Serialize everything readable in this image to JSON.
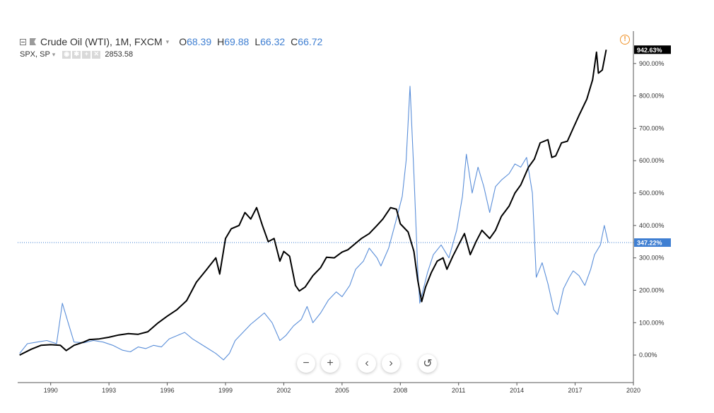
{
  "legend": {
    "main_symbol": "Crude Oil (WTI), 1M, FXCM",
    "caret": "▾",
    "o_label": "O",
    "o_value": "68.39",
    "h_label": "H",
    "h_value": "69.88",
    "l_label": "L",
    "l_value": "66.32",
    "c_label": "C",
    "c_value": "66.72",
    "compare_symbol": "SPX, SP",
    "compare_value": "2853.58"
  },
  "nav_buttons": {
    "zoom_out": "−",
    "zoom_in": "+",
    "scroll_left": "‹",
    "scroll_right": "›",
    "reset": "↺"
  },
  "warning_icon": "!",
  "chart_data": {
    "type": "line",
    "x_tick_labels": [
      "1990",
      "1993",
      "1996",
      "1999",
      "2002",
      "2005",
      "2008",
      "2011",
      "2014",
      "2017",
      "2020"
    ],
    "y_tick_labels": [
      "0.00%",
      "100.00%",
      "200.00%",
      "300.00%",
      "400.00%",
      "500.00%",
      "600.00%",
      "700.00%",
      "800.00%",
      "900.00%"
    ],
    "y_ticks": [
      0,
      100,
      200,
      300,
      400,
      500,
      600,
      700,
      800,
      900
    ],
    "xlim": [
      1988.3,
      2020.0
    ],
    "ylim": [
      -85,
      1000
    ],
    "grid": false,
    "reference_line": {
      "value": 347.22,
      "label": "347.22%",
      "color": "#3f7fd2"
    },
    "series": [
      {
        "name": "SPX, SP",
        "color": "#000000",
        "last_label": "942.63%",
        "points": [
          [
            1988.4,
            0
          ],
          [
            1989.0,
            18
          ],
          [
            1989.5,
            30
          ],
          [
            1990.0,
            32
          ],
          [
            1990.5,
            30
          ],
          [
            1990.8,
            14
          ],
          [
            1991.2,
            30
          ],
          [
            1991.7,
            40
          ],
          [
            1992.0,
            48
          ],
          [
            1992.5,
            50
          ],
          [
            1993.0,
            55
          ],
          [
            1993.5,
            62
          ],
          [
            1994.0,
            66
          ],
          [
            1994.5,
            64
          ],
          [
            1995.0,
            72
          ],
          [
            1995.5,
            98
          ],
          [
            1996.0,
            120
          ],
          [
            1996.5,
            140
          ],
          [
            1997.0,
            168
          ],
          [
            1997.5,
            225
          ],
          [
            1998.0,
            262
          ],
          [
            1998.5,
            300
          ],
          [
            1998.7,
            250
          ],
          [
            1999.0,
            360
          ],
          [
            1999.3,
            390
          ],
          [
            1999.7,
            400
          ],
          [
            2000.0,
            440
          ],
          [
            2000.3,
            420
          ],
          [
            2000.6,
            455
          ],
          [
            2000.9,
            400
          ],
          [
            2001.2,
            350
          ],
          [
            2001.5,
            360
          ],
          [
            2001.8,
            290
          ],
          [
            2002.0,
            320
          ],
          [
            2002.3,
            305
          ],
          [
            2002.6,
            215
          ],
          [
            2002.8,
            198
          ],
          [
            2003.1,
            210
          ],
          [
            2003.5,
            245
          ],
          [
            2003.9,
            270
          ],
          [
            2004.2,
            302
          ],
          [
            2004.6,
            300
          ],
          [
            2005.0,
            318
          ],
          [
            2005.3,
            325
          ],
          [
            2005.7,
            345
          ],
          [
            2006.0,
            360
          ],
          [
            2006.4,
            375
          ],
          [
            2006.8,
            400
          ],
          [
            2007.1,
            420
          ],
          [
            2007.5,
            455
          ],
          [
            2007.8,
            450
          ],
          [
            2008.0,
            405
          ],
          [
            2008.4,
            380
          ],
          [
            2008.7,
            320
          ],
          [
            2008.9,
            230
          ],
          [
            2009.1,
            165
          ],
          [
            2009.3,
            210
          ],
          [
            2009.6,
            255
          ],
          [
            2009.9,
            290
          ],
          [
            2010.2,
            300
          ],
          [
            2010.4,
            265
          ],
          [
            2010.7,
            305
          ],
          [
            2011.0,
            340
          ],
          [
            2011.3,
            375
          ],
          [
            2011.6,
            310
          ],
          [
            2011.9,
            350
          ],
          [
            2012.2,
            385
          ],
          [
            2012.6,
            360
          ],
          [
            2012.9,
            385
          ],
          [
            2013.2,
            428
          ],
          [
            2013.6,
            460
          ],
          [
            2013.9,
            500
          ],
          [
            2014.2,
            525
          ],
          [
            2014.6,
            580
          ],
          [
            2014.9,
            605
          ],
          [
            2015.2,
            655
          ],
          [
            2015.6,
            665
          ],
          [
            2015.8,
            610
          ],
          [
            2016.0,
            615
          ],
          [
            2016.3,
            655
          ],
          [
            2016.6,
            660
          ],
          [
            2016.9,
            700
          ],
          [
            2017.2,
            740
          ],
          [
            2017.6,
            790
          ],
          [
            2017.9,
            850
          ],
          [
            2018.1,
            935
          ],
          [
            2018.2,
            870
          ],
          [
            2018.4,
            880
          ],
          [
            2018.6,
            942.63
          ]
        ]
      },
      {
        "name": "Crude Oil (WTI), 1M, FXCM",
        "color": "#5b8fd9",
        "last_label": "347.22%",
        "points": [
          [
            1988.4,
            5
          ],
          [
            1988.8,
            35
          ],
          [
            1989.3,
            40
          ],
          [
            1989.8,
            45
          ],
          [
            1990.3,
            35
          ],
          [
            1990.6,
            160
          ],
          [
            1990.9,
            100
          ],
          [
            1991.2,
            40
          ],
          [
            1991.7,
            38
          ],
          [
            1992.2,
            45
          ],
          [
            1992.7,
            40
          ],
          [
            1993.2,
            30
          ],
          [
            1993.7,
            15
          ],
          [
            1994.1,
            10
          ],
          [
            1994.5,
            25
          ],
          [
            1994.9,
            20
          ],
          [
            1995.3,
            30
          ],
          [
            1995.7,
            25
          ],
          [
            1996.1,
            50
          ],
          [
            1996.5,
            60
          ],
          [
            1996.9,
            70
          ],
          [
            1997.3,
            50
          ],
          [
            1997.7,
            35
          ],
          [
            1998.1,
            20
          ],
          [
            1998.5,
            5
          ],
          [
            1998.9,
            -15
          ],
          [
            1999.2,
            5
          ],
          [
            1999.5,
            45
          ],
          [
            1999.9,
            70
          ],
          [
            2000.3,
            95
          ],
          [
            2000.7,
            115
          ],
          [
            2001.0,
            130
          ],
          [
            2001.4,
            100
          ],
          [
            2001.8,
            45
          ],
          [
            2002.1,
            60
          ],
          [
            2002.5,
            90
          ],
          [
            2002.9,
            110
          ],
          [
            2003.2,
            150
          ],
          [
            2003.5,
            100
          ],
          [
            2003.9,
            130
          ],
          [
            2004.3,
            170
          ],
          [
            2004.7,
            195
          ],
          [
            2005.0,
            180
          ],
          [
            2005.4,
            215
          ],
          [
            2005.7,
            265
          ],
          [
            2006.1,
            290
          ],
          [
            2006.4,
            330
          ],
          [
            2006.8,
            300
          ],
          [
            2007.0,
            275
          ],
          [
            2007.4,
            330
          ],
          [
            2007.8,
            420
          ],
          [
            2008.1,
            490
          ],
          [
            2008.3,
            600
          ],
          [
            2008.5,
            830
          ],
          [
            2008.7,
            560
          ],
          [
            2008.9,
            260
          ],
          [
            2009.0,
            160
          ],
          [
            2009.4,
            255
          ],
          [
            2009.7,
            310
          ],
          [
            2010.1,
            340
          ],
          [
            2010.5,
            300
          ],
          [
            2010.9,
            385
          ],
          [
            2011.2,
            490
          ],
          [
            2011.4,
            620
          ],
          [
            2011.7,
            500
          ],
          [
            2012.0,
            580
          ],
          [
            2012.3,
            520
          ],
          [
            2012.6,
            440
          ],
          [
            2012.9,
            520
          ],
          [
            2013.2,
            540
          ],
          [
            2013.6,
            560
          ],
          [
            2013.9,
            590
          ],
          [
            2014.2,
            580
          ],
          [
            2014.5,
            610
          ],
          [
            2014.8,
            500
          ],
          [
            2015.0,
            240
          ],
          [
            2015.3,
            285
          ],
          [
            2015.6,
            220
          ],
          [
            2015.9,
            140
          ],
          [
            2016.1,
            125
          ],
          [
            2016.4,
            205
          ],
          [
            2016.7,
            240
          ],
          [
            2016.9,
            260
          ],
          [
            2017.2,
            245
          ],
          [
            2017.5,
            215
          ],
          [
            2017.8,
            265
          ],
          [
            2018.0,
            310
          ],
          [
            2018.3,
            340
          ],
          [
            2018.5,
            400
          ],
          [
            2018.7,
            347.22
          ]
        ]
      }
    ]
  }
}
